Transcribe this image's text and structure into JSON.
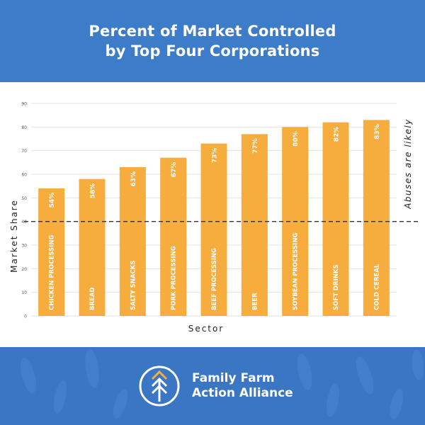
{
  "header": {
    "title_line1": "Percent of Market Controlled",
    "title_line2": "by Top Four Corporations"
  },
  "chart_data": {
    "type": "bar",
    "xlabel": "Sector",
    "ylabel": "Market Share",
    "ylim": [
      0,
      90
    ],
    "yticks": [
      "0",
      "10",
      "20",
      "30",
      "40",
      "50",
      "60",
      "70",
      "80",
      "90"
    ],
    "grid": true,
    "categories": [
      "CHICKEN PROCESSING",
      "BREAD",
      "SALTY SNACKS",
      "PORK PROCESSING",
      "BEEF PROCESSING",
      "BEER",
      "SOYBEAN PROCESSING",
      "SOFT DRINKS",
      "COLD CEREAL"
    ],
    "values": [
      54,
      58,
      63,
      67,
      73,
      77,
      80,
      82,
      83
    ],
    "data_labels": [
      "54%",
      "58%",
      "63%",
      "67%",
      "73%",
      "77%",
      "80%",
      "82%",
      "83%"
    ],
    "threshold": {
      "value": 40,
      "label": "Abuses are likely"
    },
    "bar_color": "#f7ac3e",
    "threshold_color": "#333333"
  },
  "footer": {
    "brand_line1": "Family Farm",
    "brand_line2": "Action Alliance",
    "logo_icon": "wheat-arrow-logo-icon",
    "background_color": "#3a76c4",
    "logo_arrow_color": "#f7ac3e"
  },
  "colors": {
    "header_background": "#3d7cc9"
  }
}
